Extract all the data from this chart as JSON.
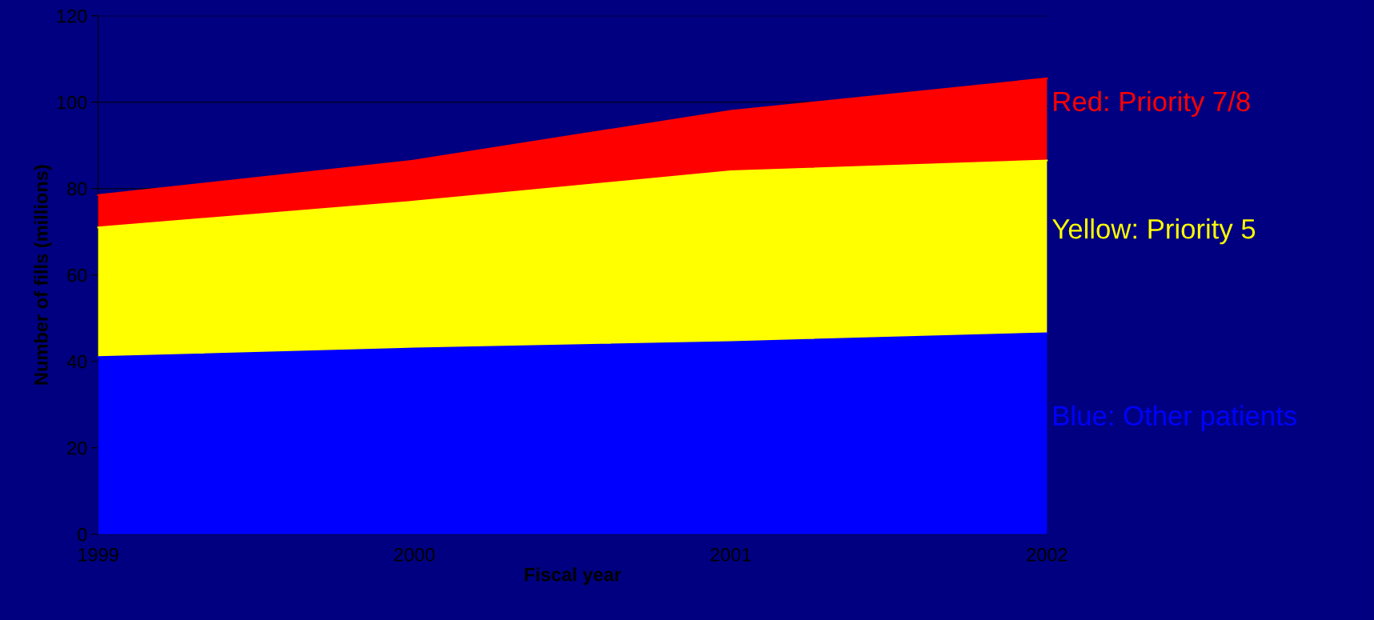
{
  "chart_data": {
    "type": "area",
    "stacked": true,
    "xlabel": "Fiscal year",
    "ylabel": "Number of fills (millions)",
    "categories": [
      "1999",
      "2000",
      "2001",
      "2002"
    ],
    "ylim": [
      0,
      120
    ],
    "yticks": [
      0,
      20,
      40,
      60,
      80,
      100,
      120
    ],
    "grid": "y",
    "series": [
      {
        "name": "Blue: Other patients",
        "color": "#0000ff",
        "values": [
          41,
          43,
          44.5,
          46.5
        ]
      },
      {
        "name": "Yellow: Priority 5",
        "color": "#ffff00",
        "values": [
          30,
          34,
          39.5,
          40
        ]
      },
      {
        "name": "Red: Priority 7/8",
        "color": "#ff0000",
        "values": [
          7.5,
          9.5,
          14,
          19
        ]
      }
    ]
  }
}
